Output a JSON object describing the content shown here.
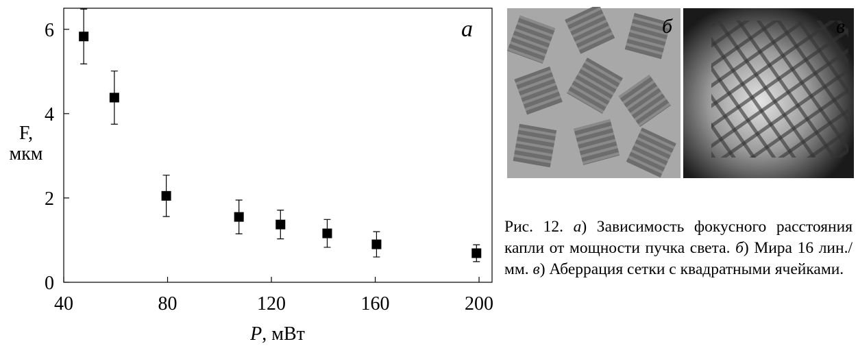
{
  "chart_data": {
    "type": "scatter",
    "panel_label": "а",
    "x": [
      47.7,
      59.5,
      79.5,
      107.5,
      123.5,
      141.5,
      160.5,
      199
    ],
    "values": [
      5.83,
      4.38,
      2.05,
      1.55,
      1.37,
      1.16,
      0.9,
      0.69
    ],
    "errors": [
      0.65,
      0.63,
      0.49,
      0.4,
      0.34,
      0.33,
      0.3,
      0.2
    ],
    "color": "#000000",
    "xlim": [
      40,
      205
    ],
    "xticks": [
      40,
      80,
      120,
      160,
      200
    ],
    "ylim": [
      0,
      6.5
    ],
    "yticks": [
      0,
      2,
      4,
      6
    ],
    "x_label_var": "P",
    "x_label_unit": ", мВт",
    "y_label": [
      "F,",
      "мкм"
    ]
  },
  "images": [
    {
      "label": "б"
    },
    {
      "label": "в"
    }
  ],
  "caption": [
    "Рис. 12. ",
    "а",
    ") Зависимость фокусного расстояния капли от мощности пучка света. ",
    "б",
    ") Мира 16 лин./мм. ",
    "в",
    ") Аберрация сетки с квадратными ячейками."
  ]
}
